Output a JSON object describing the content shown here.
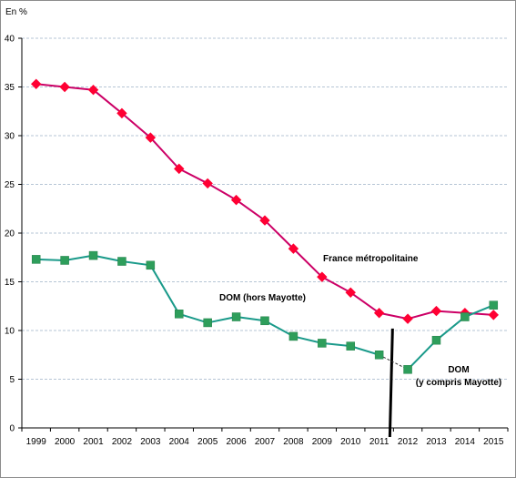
{
  "chart_data": {
    "type": "line",
    "ylabel": "En %",
    "ylim": [
      0,
      40
    ],
    "yticks": [
      0,
      5,
      10,
      15,
      20,
      25,
      30,
      35,
      40
    ],
    "categories": [
      "1999",
      "2000",
      "2001",
      "2002",
      "2003",
      "2004",
      "2005",
      "2006",
      "2007",
      "2008",
      "2009",
      "2010",
      "2011",
      "2012",
      "2013",
      "2014",
      "2015"
    ],
    "grid": "horizontal dashed",
    "series": [
      {
        "name": "France métropolitaine",
        "color": "#cc0066",
        "marker_color": "#ff0033",
        "marker": "diamond",
        "values": [
          35.3,
          35.0,
          34.7,
          32.3,
          29.8,
          26.6,
          25.1,
          23.4,
          21.3,
          18.4,
          15.5,
          13.9,
          11.8,
          11.2,
          12.0,
          11.8,
          11.6
        ]
      },
      {
        "name": "DOM (hors Mayotte)",
        "color": "#1a9a8a",
        "marker_color": "#2e9e5b",
        "marker": "square",
        "values": [
          17.3,
          17.2,
          17.7,
          17.1,
          16.7,
          11.7,
          10.8,
          11.4,
          11.0,
          9.4,
          8.7,
          8.4,
          7.5,
          null,
          null,
          null,
          null
        ]
      },
      {
        "name": "DOM (y compris Mayotte)",
        "label_lines": [
          "DOM",
          "(y compris Mayotte)"
        ],
        "color": "#1a9a8a",
        "marker_color": "#2e9e5b",
        "marker": "square",
        "values": [
          null,
          null,
          null,
          null,
          null,
          null,
          null,
          null,
          null,
          null,
          null,
          null,
          null,
          6.0,
          9.0,
          11.4,
          12.6
        ]
      }
    ],
    "annotations": {
      "break_between": [
        "2011",
        "2012"
      ],
      "dashed_link_between": [
        "2011",
        "2012"
      ]
    }
  }
}
